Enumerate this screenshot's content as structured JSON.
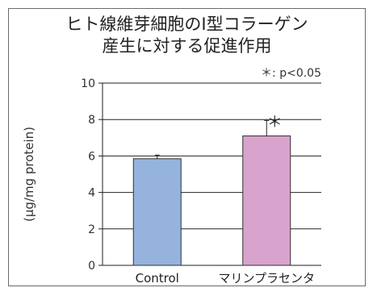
{
  "chart_data": {
    "type": "bar",
    "title_lines": [
      "ヒト線維芽細胞のI型コラーゲン",
      "産生に対する促進作用"
    ],
    "ylabel": "(μg/mg protein)",
    "xlabel": "",
    "note": "＊: p<0.05",
    "ylim": [
      0,
      10
    ],
    "yticks": [
      0,
      2,
      4,
      6,
      8,
      10
    ],
    "grid": true,
    "categories": [
      "Control",
      "マリンプラセンタ"
    ],
    "values": [
      5.85,
      7.1
    ],
    "errors": [
      0.2,
      0.85
    ],
    "significance": [
      "",
      "＊"
    ],
    "colors": [
      "#95b3dd",
      "#d8a3cc"
    ],
    "edge_color": "#333333"
  }
}
